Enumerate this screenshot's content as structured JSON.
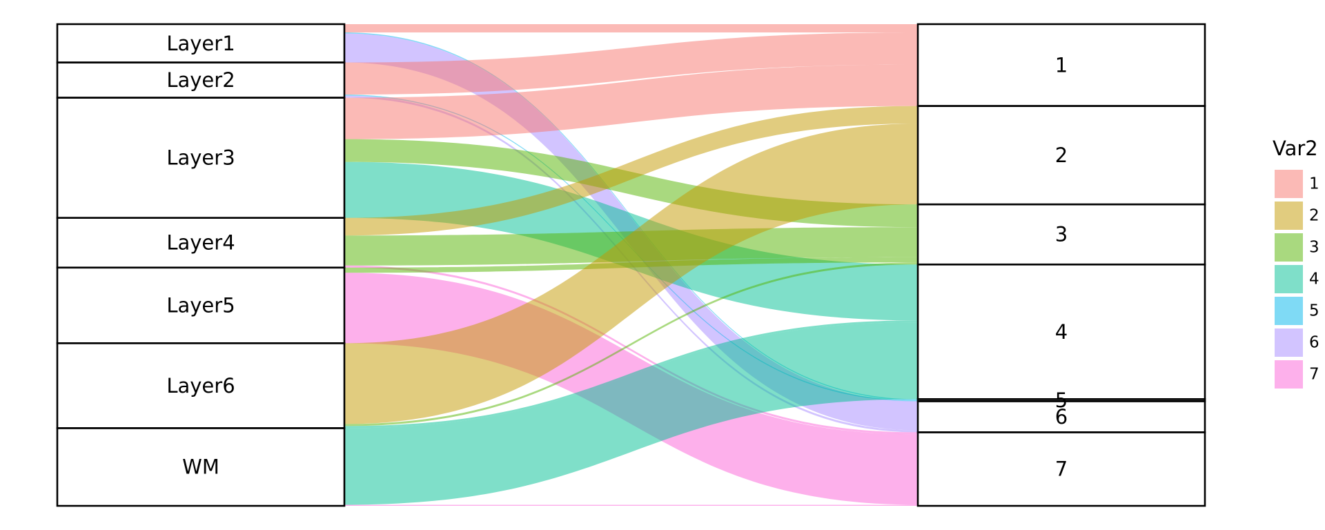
{
  "chart_data": {
    "type": "alluvial",
    "left_strata": [
      "Layer1",
      "Layer2",
      "Layer3",
      "Layer4",
      "Layer5",
      "Layer6",
      "WM"
    ],
    "right_strata": [
      "1",
      "2",
      "3",
      "4",
      "5",
      "6",
      "7"
    ],
    "legend_title": "Var2",
    "legend_items": [
      {
        "label": "1",
        "color": "#F8766D"
      },
      {
        "label": "2",
        "color": "#C49A00"
      },
      {
        "label": "3",
        "color": "#53B400"
      },
      {
        "label": "4",
        "color": "#00C094"
      },
      {
        "label": "5",
        "color": "#00B6EB"
      },
      {
        "label": "6",
        "color": "#A58AFF"
      },
      {
        "label": "7",
        "color": "#FB61D7"
      }
    ],
    "flows": [
      {
        "from": "Layer1",
        "to": "1",
        "value": 8
      },
      {
        "from": "Layer1",
        "to": "6",
        "value": 28
      },
      {
        "from": "Layer1",
        "to": "5",
        "value": 1
      },
      {
        "from": "Layer2",
        "to": "1",
        "value": 31
      },
      {
        "from": "Layer2",
        "to": "6",
        "value": 2
      },
      {
        "from": "Layer2",
        "to": "5",
        "value": 1
      },
      {
        "from": "Layer3",
        "to": "1",
        "value": 40
      },
      {
        "from": "Layer3",
        "to": "3",
        "value": 22
      },
      {
        "from": "Layer3",
        "to": "4",
        "value": 54
      },
      {
        "from": "Layer4",
        "to": "3",
        "value": 29
      },
      {
        "from": "Layer4",
        "to": "2",
        "value": 17
      },
      {
        "from": "Layer4",
        "to": "7",
        "value": 2
      },
      {
        "from": "Layer5",
        "to": "3",
        "value": 5
      },
      {
        "from": "Layer5",
        "to": "7",
        "value": 68
      },
      {
        "from": "Layer6",
        "to": "2",
        "value": 78
      },
      {
        "from": "Layer6",
        "to": "3",
        "value": 2
      },
      {
        "from": "Layer6",
        "to": "4",
        "value": 2
      },
      {
        "from": "WM",
        "to": "4",
        "value": 74
      },
      {
        "from": "WM",
        "to": "7",
        "value": 1
      }
    ]
  }
}
